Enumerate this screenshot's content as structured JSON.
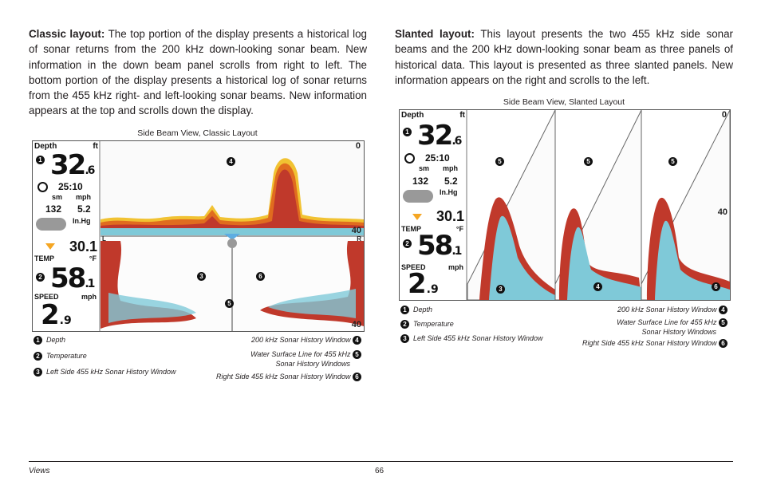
{
  "left_paragraph": {
    "lead": "Classic layout:",
    "text": " The top portion of the display presents a historical log of sonar returns from the 200 kHz down-looking sonar beam. New information in the down beam panel scrolls from right to left. The bottom portion of the display presents a historical log of sonar returns from the 455 kHz right- and left-looking sonar beams. New information appears at the top and scrolls down the display."
  },
  "right_paragraph": {
    "lead": "Slanted layout:",
    "text": " This layout presents the two 455 kHz side sonar beams and the 200 kHz down-looking sonar beam as three panels of historical data. This layout is presented as three slanted panels. New information appears on the right and scrolls to the left."
  },
  "classic": {
    "caption": "Side Beam View, Classic Layout",
    "readouts": {
      "depth_label": "Depth",
      "depth_unit": "ft",
      "depth_value": "32",
      "depth_decimal": ".6",
      "time_value": "25:10",
      "sm_label": "sm",
      "mph_label": "mph",
      "distance_value": "132",
      "speed_small_value": "5.2",
      "pressure_unit": "In.Hg",
      "pressure_value": "30.1",
      "temp_label": "TEMP",
      "temp_unit": "°F",
      "temp_value": "58",
      "temp_decimal": ".1",
      "speed_label": "SPEED",
      "speed_unit": "mph",
      "speed_value": "2",
      "speed_decimal": ".9"
    },
    "scale": {
      "top": "0",
      "mid": "40",
      "bottom": "40",
      "left_marker": "L",
      "right_marker": "R"
    },
    "callouts": [
      "4",
      "3",
      "6",
      "5"
    ],
    "legend_left": [
      {
        "num": "1",
        "text": "Depth"
      },
      {
        "num": "2",
        "text": "Temperature"
      },
      {
        "num": "3",
        "text": "Left Side 455 kHz Sonar History Window"
      }
    ],
    "legend_right": [
      {
        "num": "4",
        "text": "200 kHz Sonar History Window"
      },
      {
        "num": "5",
        "text": "Water Surface Line for 455 kHz",
        "text2": "Sonar History Windows"
      },
      {
        "num": "6",
        "text": "Right Side 455 kHz Sonar History Window"
      }
    ]
  },
  "slanted": {
    "caption": "Side Beam View, Slanted Layout",
    "readouts": {
      "depth_label": "Depth",
      "depth_unit": "ft",
      "depth_value": "32",
      "depth_decimal": ".6",
      "time_value": "25:10",
      "sm_label": "sm",
      "mph_label": "mph",
      "distance_value": "132",
      "speed_small_value": "5.2",
      "pressure_unit": "In.Hg",
      "pressure_value": "30.1",
      "temp_label": "TEMP",
      "temp_unit": "°F",
      "temp_value": "58",
      "temp_decimal": ".1",
      "speed_label": "SPEED",
      "speed_unit": "mph",
      "speed_value": "2",
      "speed_decimal": ".9"
    },
    "scale": {
      "top": "0",
      "mid": "40"
    },
    "callouts": [
      "5",
      "5",
      "5",
      "3",
      "4",
      "6"
    ],
    "legend_left": [
      {
        "num": "1",
        "text": "Depth"
      },
      {
        "num": "2",
        "text": "Temperature"
      },
      {
        "num": "3",
        "text": "Left Side 455 kHz Sonar History Window"
      }
    ],
    "legend_right": [
      {
        "num": "4",
        "text": "200 kHz Sonar History Window"
      },
      {
        "num": "5",
        "text": "Water Surface Line for 455 kHz",
        "text2": "Sonar History Windows"
      },
      {
        "num": "6",
        "text": "Right Side 455 kHz Sonar History Window"
      }
    ]
  },
  "footer": {
    "section": "Views",
    "page": "66"
  }
}
